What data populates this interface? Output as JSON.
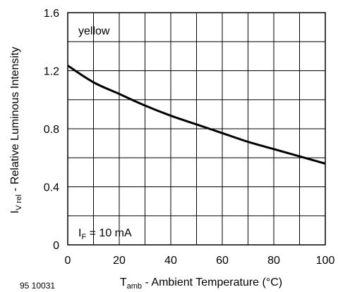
{
  "chart_data": {
    "type": "line",
    "x": [
      0,
      10,
      20,
      30,
      40,
      50,
      60,
      70,
      80,
      90,
      100
    ],
    "series": [
      {
        "values": [
          1.235,
          1.12,
          1.04,
          0.96,
          0.89,
          0.83,
          0.77,
          0.71,
          0.66,
          0.61,
          0.56
        ]
      }
    ],
    "xlim": [
      0,
      100
    ],
    "ylim": [
      0,
      1.6
    ],
    "x_ticks": [
      "0",
      "20",
      "40",
      "60",
      "80",
      "100"
    ],
    "y_ticks": [
      "0",
      "0.4",
      "0.8",
      "1.2",
      "1.6"
    ],
    "grid": true,
    "annotation_top": "yellow",
    "annotation_bottom": {
      "main": "I",
      "sub": "F",
      "rest": " = 10 mA"
    },
    "xlabel": {
      "main": "T",
      "sub": "amb",
      "rest": " - Ambient Temperature (°C)"
    },
    "ylabel": {
      "main": "I",
      "sub": "V rel",
      "rest": " - Relative Luminous Intensity"
    },
    "figure_id": "95 10031",
    "colors": {
      "line": "#000000",
      "grid": "#000000",
      "background": "#ffffff"
    }
  }
}
